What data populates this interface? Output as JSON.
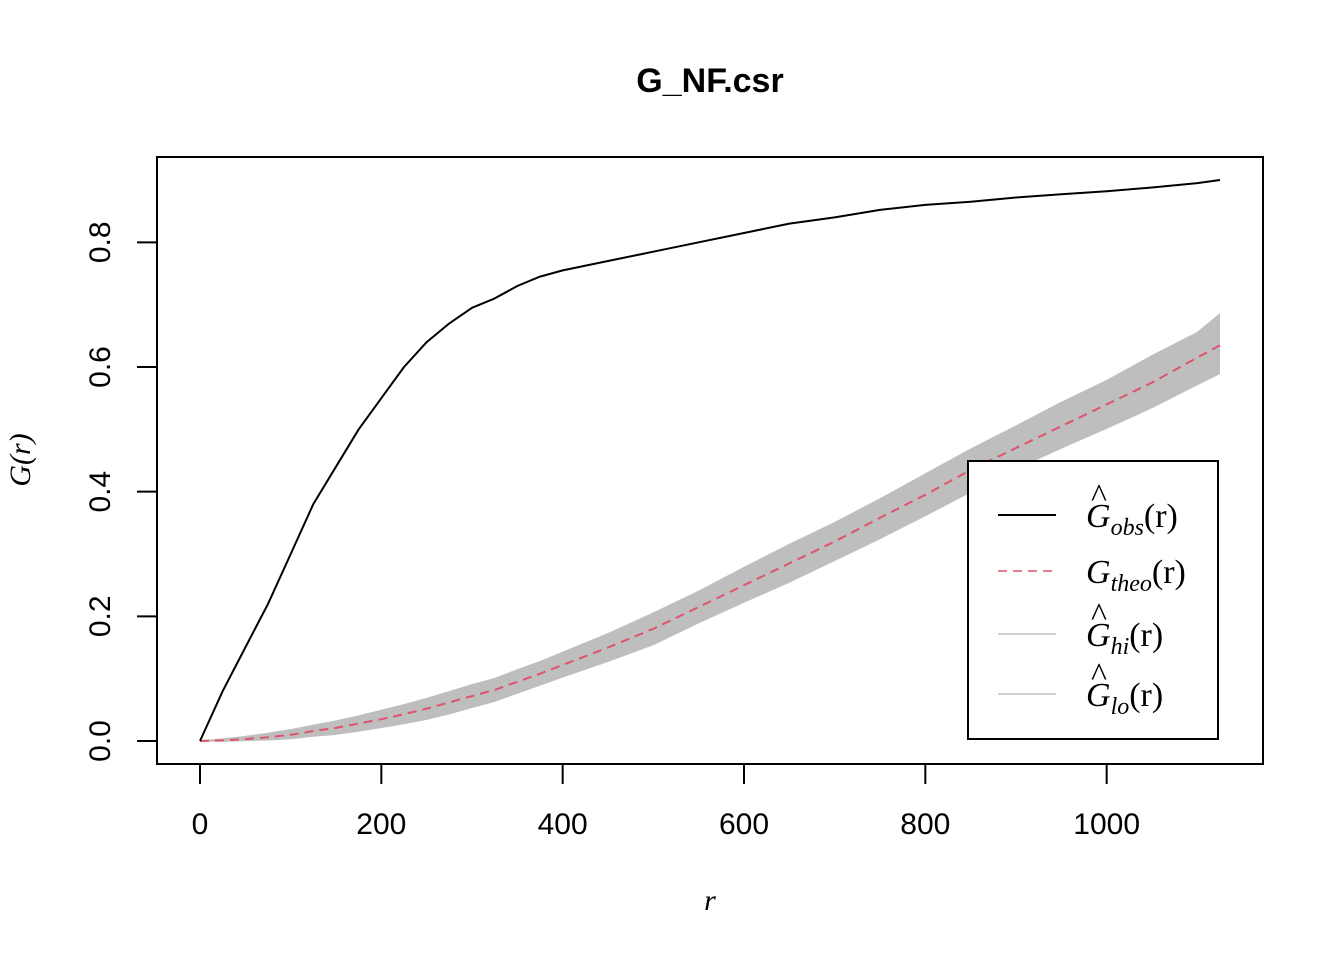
{
  "chart_data": {
    "type": "line",
    "title": "G_NF.csr",
    "xlabel": "r",
    "ylabel": "G(r)",
    "xlim": [
      0,
      1125
    ],
    "ylim": [
      0,
      0.9
    ],
    "x_ticks": [
      0,
      200,
      400,
      600,
      800,
      1000
    ],
    "x_tick_labels": [
      "0",
      "200",
      "400",
      "600",
      "800",
      "1000"
    ],
    "y_ticks": [
      0.0,
      0.2,
      0.4,
      0.6,
      0.8
    ],
    "y_tick_labels": [
      "0.0",
      "0.2",
      "0.4",
      "0.6",
      "0.8"
    ],
    "grid": false,
    "legend_position": "bottom-right",
    "x": [
      0,
      25,
      50,
      75,
      100,
      125,
      150,
      175,
      200,
      225,
      250,
      275,
      300,
      325,
      350,
      375,
      400,
      450,
      500,
      550,
      600,
      650,
      700,
      750,
      800,
      850,
      900,
      950,
      1000,
      1050,
      1100,
      1125
    ],
    "series": [
      {
        "name": "obs",
        "color": "#000000",
        "dash": "solid",
        "values": [
          0.0,
          0.08,
          0.15,
          0.22,
          0.3,
          0.38,
          0.44,
          0.5,
          0.55,
          0.6,
          0.64,
          0.67,
          0.695,
          0.71,
          0.73,
          0.745,
          0.755,
          0.77,
          0.785,
          0.8,
          0.815,
          0.83,
          0.84,
          0.852,
          0.86,
          0.865,
          0.872,
          0.877,
          0.882,
          0.888,
          0.895,
          0.9
        ]
      },
      {
        "name": "theo",
        "color": "#DF536B",
        "dash": "dashed",
        "values": [
          0.0,
          0.001,
          0.003,
          0.006,
          0.01,
          0.016,
          0.021,
          0.028,
          0.035,
          0.043,
          0.052,
          0.062,
          0.072,
          0.082,
          0.095,
          0.108,
          0.122,
          0.15,
          0.18,
          0.215,
          0.25,
          0.285,
          0.32,
          0.358,
          0.395,
          0.435,
          0.47,
          0.505,
          0.54,
          0.575,
          0.615,
          0.635
        ]
      },
      {
        "name": "hi",
        "color": "#BEBEBE",
        "dash": "solid",
        "values": [
          0.0,
          0.003,
          0.007,
          0.012,
          0.018,
          0.025,
          0.032,
          0.04,
          0.049,
          0.058,
          0.068,
          0.079,
          0.09,
          0.1,
          0.114,
          0.127,
          0.142,
          0.172,
          0.205,
          0.24,
          0.278,
          0.315,
          0.35,
          0.388,
          0.428,
          0.468,
          0.505,
          0.543,
          0.578,
          0.618,
          0.655,
          0.685
        ]
      },
      {
        "name": "lo",
        "color": "#BEBEBE",
        "dash": "solid",
        "values": [
          0.0,
          0.0,
          0.001,
          0.002,
          0.004,
          0.008,
          0.011,
          0.016,
          0.022,
          0.028,
          0.035,
          0.044,
          0.054,
          0.064,
          0.077,
          0.09,
          0.103,
          0.128,
          0.155,
          0.19,
          0.223,
          0.255,
          0.29,
          0.325,
          0.362,
          0.4,
          0.437,
          0.47,
          0.502,
          0.535,
          0.572,
          0.59
        ]
      }
    ],
    "legend": [
      {
        "series": "obs",
        "base": "G",
        "hat": "^",
        "sub": "obs",
        "arg": "(r)",
        "color": "#000000"
      },
      {
        "series": "theo",
        "base": "G",
        "hat": "",
        "sub": "theo",
        "arg": "(r)",
        "color": "#DF536B"
      },
      {
        "series": "hi",
        "base": "G",
        "hat": "^",
        "sub": "hi",
        "arg": "(r)",
        "color": "#BEBEBE"
      },
      {
        "series": "lo",
        "base": "G",
        "hat": "^",
        "sub": "lo",
        "arg": "(r)",
        "color": "#BEBEBE"
      }
    ],
    "envelope_color": "#BEBEBE"
  }
}
